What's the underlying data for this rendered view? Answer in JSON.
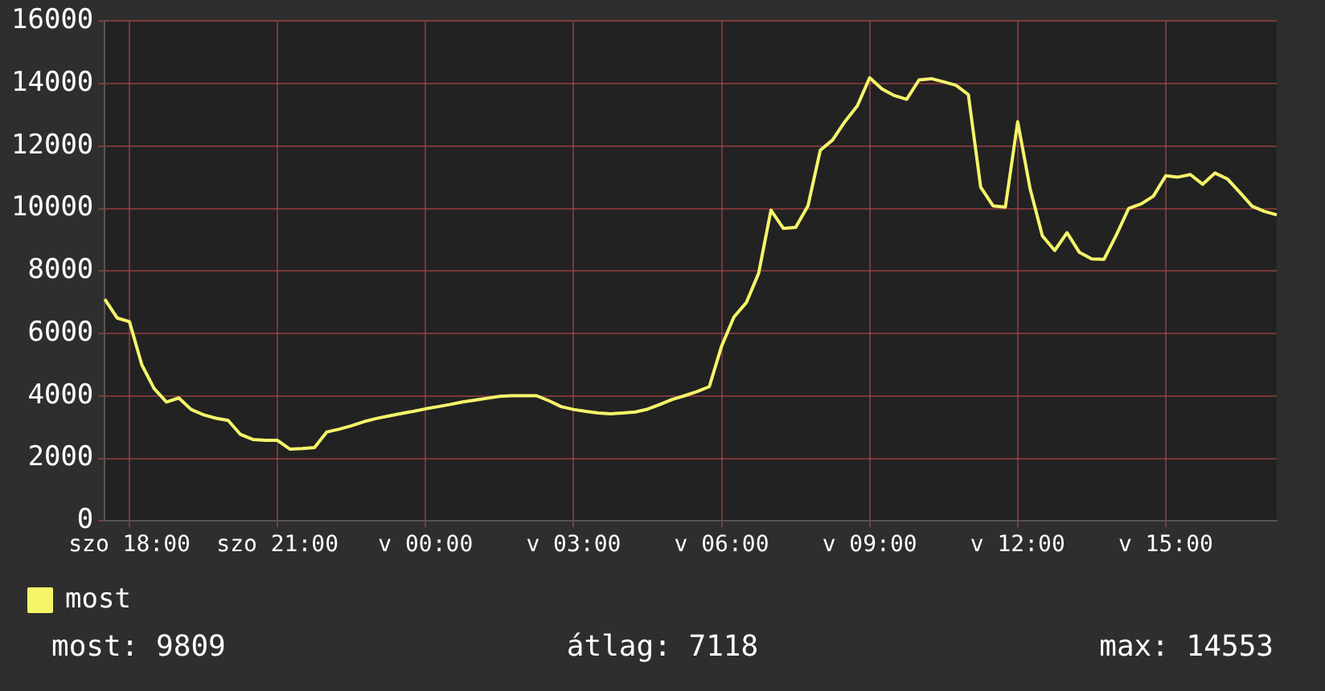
{
  "chart_data": {
    "type": "line",
    "legend": "bottom left",
    "grid": true,
    "marker": "none",
    "line_style": "solid",
    "categories": [
      null,
      null,
      "szo 18:00",
      null,
      null,
      null,
      null,
      null,
      null,
      null,
      null,
      null,
      null,
      null,
      "szo 21:00",
      null,
      null,
      null,
      null,
      null,
      null,
      null,
      null,
      null,
      null,
      null,
      "v 00:00",
      null,
      null,
      null,
      null,
      null,
      null,
      null,
      null,
      null,
      null,
      null,
      "v 03:00",
      null,
      null,
      null,
      null,
      null,
      null,
      null,
      null,
      null,
      null,
      null,
      "v 06:00",
      null,
      null,
      null,
      null,
      null,
      null,
      null,
      null,
      null,
      null,
      null,
      "v 09:00",
      null,
      null,
      null,
      null,
      null,
      null,
      null,
      null,
      null,
      null,
      null,
      "v 12:00",
      null,
      null,
      null,
      null,
      null,
      null,
      null,
      null,
      null,
      null,
      null,
      "v 15:00",
      null,
      null,
      null,
      null,
      null,
      null,
      null,
      null,
      null
    ],
    "ylim": [
      0,
      16000
    ],
    "yticks": [
      0,
      2000,
      4000,
      6000,
      8000,
      10000,
      12000,
      14000,
      16000
    ],
    "annotations": [
      "most: 9809",
      "átlag: 7118",
      "max: 14553"
    ],
    "series": [
      {
        "name": "most",
        "color": "#f5f56a",
        "values": [
          7100,
          6500,
          6380,
          5000,
          4240,
          3810,
          3940,
          3570,
          3400,
          3290,
          3220,
          2770,
          2610,
          2580,
          2580,
          2300,
          2320,
          2350,
          2850,
          2940,
          3050,
          3180,
          3280,
          3360,
          3440,
          3510,
          3590,
          3660,
          3730,
          3810,
          3870,
          3930,
          3990,
          4010,
          4010,
          4010,
          3850,
          3660,
          3570,
          3510,
          3460,
          3430,
          3460,
          3490,
          3580,
          3730,
          3890,
          4010,
          4140,
          4300,
          5600,
          6530,
          6990,
          7930,
          9950,
          9370,
          9400,
          10090,
          11870,
          12200,
          12790,
          13290,
          14190,
          13830,
          13620,
          13500,
          14120,
          14160,
          14060,
          13950,
          13650,
          10690,
          10090,
          10050,
          12780,
          10650,
          9130,
          8660,
          9230,
          8600,
          8390,
          8380,
          9160,
          10010,
          10150,
          10400,
          11050,
          11010,
          11090,
          10780,
          11140,
          10950,
          10520,
          10080,
          9910,
          9800
        ]
      }
    ]
  }
}
